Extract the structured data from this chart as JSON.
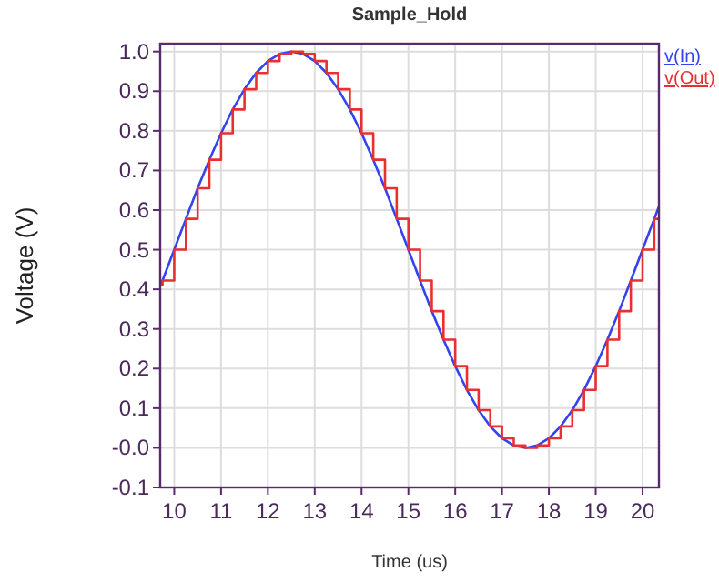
{
  "chart_data": {
    "type": "line",
    "title": "Sample_Hold",
    "xlabel": "Time (us)",
    "ylabel": "Voltage (V)",
    "xlim": [
      9.7,
      20.35
    ],
    "xticks": [
      10,
      11,
      12,
      13,
      14,
      15,
      16,
      17,
      18,
      19,
      20
    ],
    "ylim": [
      -0.1,
      1.02
    ],
    "yticks": [
      -0.1,
      {
        "value": 0,
        "label": "-0.0"
      },
      0.1,
      0.2,
      0.3,
      0.4,
      0.5,
      0.6,
      0.7,
      0.8,
      0.9,
      {
        "value": 1,
        "label": "1.0"
      }
    ],
    "grid": true,
    "legend": "top right",
    "series": [
      {
        "name": "v(In)",
        "color": "#3344ee",
        "x": [
          9.7,
          9.75,
          10,
          10.25,
          10.5,
          10.75,
          11,
          11.25,
          11.5,
          11.75,
          12,
          12.25,
          12.5,
          12.75,
          13,
          13.25,
          13.5,
          13.75,
          14,
          14.25,
          14.5,
          14.75,
          15,
          15.25,
          15.5,
          15.75,
          16,
          16.25,
          16.5,
          16.75,
          17,
          17.25,
          17.5,
          17.75,
          18,
          18.25,
          18.5,
          18.75,
          19,
          19.25,
          19.5,
          19.75,
          20,
          20.25,
          20.35
        ],
        "values": [
          0.41,
          0.422,
          0.5,
          0.578,
          0.655,
          0.727,
          0.794,
          0.854,
          0.905,
          0.946,
          0.976,
          0.994,
          1.0,
          0.994,
          0.976,
          0.946,
          0.905,
          0.854,
          0.794,
          0.727,
          0.655,
          0.578,
          0.5,
          0.422,
          0.345,
          0.273,
          0.206,
          0.146,
          0.095,
          0.054,
          0.024,
          0.006,
          0.0,
          0.006,
          0.024,
          0.054,
          0.095,
          0.146,
          0.206,
          0.273,
          0.345,
          0.422,
          0.5,
          0.578,
          0.609
        ]
      },
      {
        "name": "v(Out)",
        "color": "#e83030",
        "type": "step",
        "x": [
          9.7,
          9.75,
          10,
          10.25,
          10.5,
          10.75,
          11,
          11.25,
          11.5,
          11.75,
          12,
          12.25,
          12.5,
          12.75,
          13,
          13.25,
          13.5,
          13.75,
          14,
          14.25,
          14.5,
          14.75,
          15,
          15.25,
          15.5,
          15.75,
          16,
          16.25,
          16.5,
          16.75,
          17,
          17.25,
          17.5,
          17.75,
          18,
          18.25,
          18.5,
          18.75,
          19,
          19.25,
          19.5,
          19.75,
          20,
          20.25,
          20.35
        ],
        "values": [
          0.41,
          0.422,
          0.5,
          0.578,
          0.655,
          0.727,
          0.794,
          0.854,
          0.905,
          0.946,
          0.976,
          0.994,
          1.0,
          0.994,
          0.976,
          0.946,
          0.905,
          0.854,
          0.794,
          0.727,
          0.655,
          0.578,
          0.5,
          0.422,
          0.345,
          0.273,
          0.206,
          0.146,
          0.095,
          0.054,
          0.024,
          0.006,
          0.0,
          0.006,
          0.024,
          0.054,
          0.095,
          0.146,
          0.206,
          0.273,
          0.345,
          0.422,
          0.5,
          0.578,
          0.578
        ]
      }
    ]
  }
}
